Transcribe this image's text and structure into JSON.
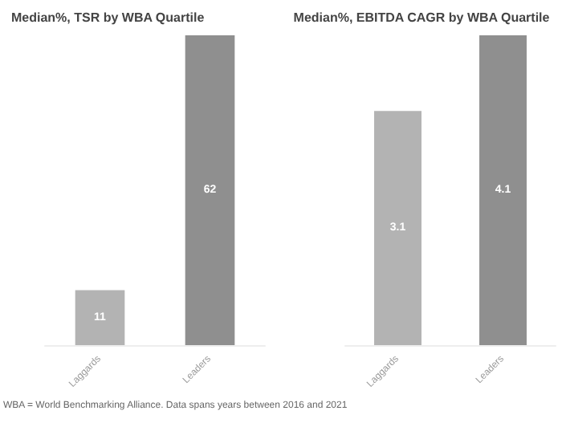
{
  "chart_data": [
    {
      "type": "bar",
      "title": "Median%, TSR by WBA Quartile",
      "categories": [
        "Laggards",
        "Leaders"
      ],
      "values": [
        11,
        62
      ],
      "colors": [
        "#b3b3b3",
        "#8f8f8f"
      ],
      "data_labels": true,
      "annotations": [
        "WBA = World Benchmarking Alliance. Data spans years between 2016 and 2021"
      ]
    },
    {
      "type": "bar",
      "title": "Median%, EBITDA CAGR by WBA Quartile",
      "categories": [
        "Laggards",
        "Leaders"
      ],
      "values": [
        3.1,
        4.1
      ],
      "colors": [
        "#b3b3b3",
        "#8f8f8f"
      ],
      "data_labels": true
    }
  ]
}
